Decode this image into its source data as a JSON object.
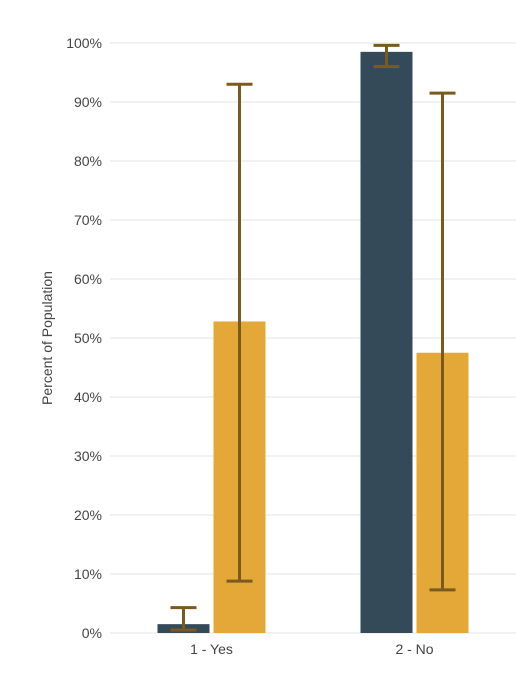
{
  "chart_data": {
    "type": "bar",
    "title": "",
    "xlabel": "",
    "ylabel": "Percent of Population",
    "ylim": [
      0,
      100
    ],
    "yticks": [
      0,
      10,
      20,
      30,
      40,
      50,
      60,
      70,
      80,
      90,
      100
    ],
    "ytick_labels": [
      "0%",
      "10%",
      "20%",
      "30%",
      "40%",
      "50%",
      "60%",
      "70%",
      "80%",
      "90%",
      "100%"
    ],
    "categories": [
      "1 - Yes",
      "2 - No"
    ],
    "series": [
      {
        "color": "#344a58",
        "values": [
          1.5,
          98.5
        ],
        "error_low": [
          0.5,
          96.0
        ],
        "error_high": [
          4.3,
          99.6
        ]
      },
      {
        "color": "#e3a838",
        "values": [
          52.8,
          47.5
        ],
        "error_low": [
          8.8,
          7.3
        ],
        "error_high": [
          93.0,
          91.5
        ]
      }
    ],
    "error_bar_color": "#7a5a1e",
    "grid": true,
    "legend": "none"
  }
}
